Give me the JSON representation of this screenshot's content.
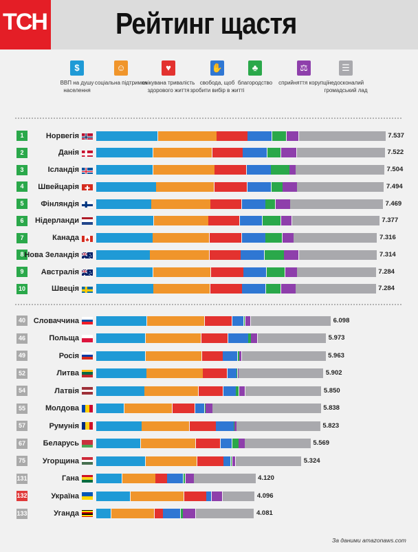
{
  "brand": {
    "logo_text": "ТСН",
    "logo_color": "#e41e26"
  },
  "chart_data": {
    "type": "bar",
    "stacked": true,
    "orientation": "horizontal",
    "title": "Рейтинг щастя",
    "source": "За даними amazonaws.com",
    "factors": [
      {
        "key": "gdp",
        "name": "ВВП на душу населення",
        "color": "#1f9ad6",
        "icon": "money-bag-icon",
        "glyph": "$"
      },
      {
        "key": "social",
        "name": "соціальна підтримка",
        "color": "#f0952b",
        "icon": "people-icon",
        "glyph": "☺"
      },
      {
        "key": "health",
        "name": "очікувана тривалість здорового життя",
        "color": "#e3322f",
        "icon": "heart-pulse-icon",
        "glyph": "♥"
      },
      {
        "key": "freedom",
        "name": "свобода, щоб зробити вибір в житті",
        "color": "#2f77d3",
        "icon": "hand-dove-icon",
        "glyph": "✋"
      },
      {
        "key": "generosity",
        "name": "благородство",
        "color": "#2aa84a",
        "icon": "group-icon",
        "glyph": "♣"
      },
      {
        "key": "corruption",
        "name": "сприйняття корупції",
        "color": "#8e3fab",
        "icon": "bribe-icon",
        "glyph": "⚖"
      },
      {
        "key": "dystopia",
        "name": "недосконалий громадський лад",
        "color": "#a9a9ad",
        "icon": "crowd-icon",
        "glyph": "☰"
      }
    ],
    "countries": [
      {
        "rank": "1",
        "name": "Норвегія",
        "score": 7.537,
        "score_label": "7.537",
        "flag": "norway",
        "values": [
          1.616,
          1.534,
          0.797,
          0.635,
          0.362,
          0.316,
          2.277
        ]
      },
      {
        "rank": "2",
        "name": "Данія",
        "score": 7.522,
        "score_label": "7.522",
        "flag": "denmark",
        "values": [
          1.482,
          1.551,
          0.793,
          0.626,
          0.355,
          0.401,
          2.314
        ]
      },
      {
        "rank": "3",
        "name": "Ісландія",
        "score": 7.504,
        "score_label": "7.504",
        "flag": "iceland",
        "values": [
          1.481,
          1.611,
          0.834,
          0.627,
          0.476,
          0.154,
          2.323
        ]
      },
      {
        "rank": "4",
        "name": "Швейцарія",
        "score": 7.494,
        "score_label": "7.494",
        "flag": "switzerland",
        "values": [
          1.565,
          1.517,
          0.858,
          0.62,
          0.291,
          0.367,
          2.277
        ]
      },
      {
        "rank": "5",
        "name": "Фінляндія",
        "score": 7.469,
        "score_label": "7.469",
        "flag": "finland",
        "values": [
          1.444,
          1.54,
          0.809,
          0.618,
          0.245,
          0.383,
          2.43
        ]
      },
      {
        "rank": "6",
        "name": "Нідерланди",
        "score": 7.377,
        "score_label": "7.377",
        "flag": "netherlands",
        "values": [
          1.504,
          1.429,
          0.811,
          0.585,
          0.47,
          0.283,
          2.295
        ]
      },
      {
        "rank": "7",
        "name": "Канада",
        "score": 7.316,
        "score_label": "7.316",
        "flag": "canada",
        "values": [
          1.479,
          1.481,
          0.835,
          0.611,
          0.436,
          0.287,
          2.187
        ]
      },
      {
        "rank": "8",
        "name": "Нова Зеландія",
        "score": 7.314,
        "score_label": "7.314",
        "flag": "newzealand",
        "values": [
          1.406,
          1.548,
          0.817,
          0.614,
          0.5,
          0.383,
          2.046
        ]
      },
      {
        "rank": "9",
        "name": "Австралія",
        "score": 7.284,
        "score_label": "7.284",
        "flag": "australia",
        "values": [
          1.484,
          1.51,
          0.844,
          0.602,
          0.478,
          0.301,
          2.065
        ]
      },
      {
        "rank": "10",
        "name": "Швеція",
        "score": 7.284,
        "score_label": "7.284",
        "flag": "sweden",
        "values": [
          1.494,
          1.478,
          0.831,
          0.613,
          0.385,
          0.384,
          2.098
        ]
      },
      {
        "rank": "40",
        "name": "Словаччина",
        "score": 6.098,
        "score_label": "6.098",
        "flag": "slovakia",
        "values": [
          1.325,
          1.505,
          0.712,
          0.296,
          0.026,
          0.136,
          2.098
        ]
      },
      {
        "rank": "46",
        "name": "Польща",
        "score": 5.973,
        "score_label": "5.973",
        "flag": "poland",
        "values": [
          1.292,
          1.446,
          0.699,
          0.52,
          0.063,
          0.158,
          1.795
        ]
      },
      {
        "rank": "49",
        "name": "Росія",
        "score": 5.963,
        "score_label": "5.963",
        "flag": "russia",
        "values": [
          1.286,
          1.469,
          0.547,
          0.373,
          0.033,
          0.052,
          2.203
        ]
      },
      {
        "rank": "52",
        "name": "Литва",
        "score": 5.902,
        "score_label": "5.902",
        "flag": "lithuania",
        "values": [
          1.315,
          1.473,
          0.629,
          0.234,
          0.012,
          0.01,
          2.229
        ]
      },
      {
        "rank": "54",
        "name": "Латвія",
        "score": 5.85,
        "score_label": "5.850",
        "flag": "latvia",
        "values": [
          1.261,
          1.405,
          0.639,
          0.325,
          0.073,
          0.153,
          1.994
        ]
      },
      {
        "rank": "55",
        "name": "Молдова",
        "score": 5.838,
        "score_label": "5.838",
        "flag": "moldova",
        "values": [
          0.729,
          1.252,
          0.59,
          0.239,
          0.01,
          0.175,
          2.843
        ]
      },
      {
        "rank": "57",
        "name": "Румунія",
        "score": 5.823,
        "score_label": "5.823",
        "flag": "romania",
        "values": [
          1.187,
          1.244,
          0.688,
          0.457,
          0.005,
          0.05,
          2.192
        ]
      },
      {
        "rank": "67",
        "name": "Беларусь",
        "score": 5.569,
        "score_label": "5.569",
        "flag": "belarus",
        "values": [
          1.156,
          1.445,
          0.637,
          0.295,
          0.157,
          0.156,
          1.723
        ]
      },
      {
        "rank": "75",
        "name": "Угорщина",
        "score": 5.324,
        "score_label": "5.324",
        "flag": "hungary",
        "values": [
          1.287,
          1.346,
          0.687,
          0.176,
          0.024,
          0.079,
          1.725
        ]
      },
      {
        "rank": "131",
        "name": "Гана",
        "score": 4.12,
        "score_label": "4.120",
        "flag": "ghana",
        "values": [
          0.667,
          0.874,
          0.296,
          0.417,
          0.036,
          0.215,
          1.615
        ]
      },
      {
        "rank": "132",
        "name": "Україна",
        "score": 4.096,
        "score_label": "4.096",
        "flag": "ukraine",
        "values": [
          0.894,
          1.394,
          0.575,
          0.122,
          0.006,
          0.27,
          0.835
        ]
      },
      {
        "rank": "133",
        "name": "Уганда",
        "score": 4.081,
        "score_label": "4.081",
        "flag": "uganda",
        "values": [
          0.382,
          1.13,
          0.217,
          0.444,
          0.052,
          0.322,
          1.534
        ]
      }
    ],
    "rank_colors": {
      "top10": "#2aa84a",
      "other": "#aaaaaa",
      "highlight": "#e03a3a"
    },
    "highlight_country": "Україна"
  }
}
